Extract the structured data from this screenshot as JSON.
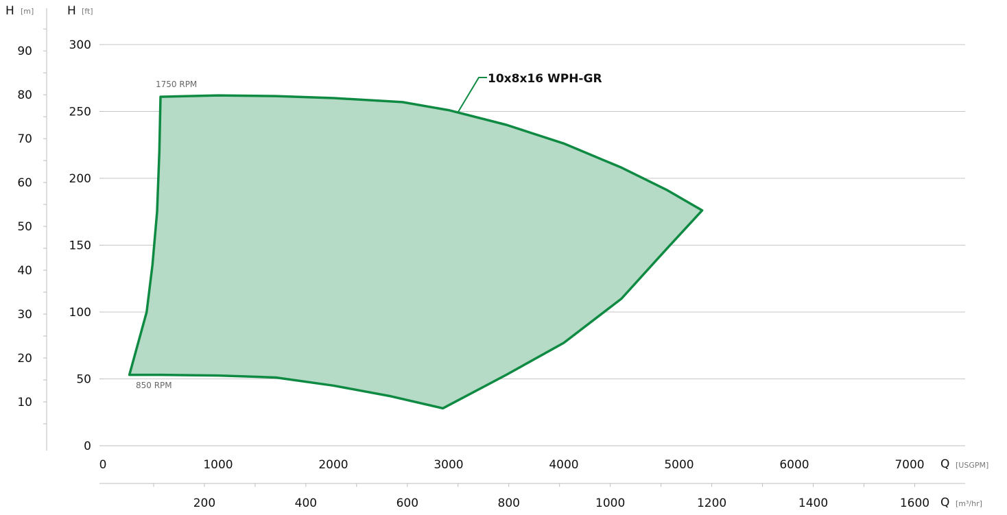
{
  "chart_data": {
    "type": "area",
    "title": "",
    "series": [
      {
        "name": "10x8x16 WPH-GR",
        "color": "#0f8a43",
        "fill": "#b5dbc6",
        "outline_usgpm_ft": [
          [
            500,
            261
          ],
          [
            1000,
            262
          ],
          [
            1500,
            261.5
          ],
          [
            2000,
            260
          ],
          [
            2600,
            257
          ],
          [
            3000,
            251
          ],
          [
            3500,
            240
          ],
          [
            4000,
            226
          ],
          [
            4500,
            208
          ],
          [
            4900,
            191
          ],
          [
            5200,
            176
          ],
          [
            4900,
            148
          ],
          [
            4500,
            110
          ],
          [
            4000,
            77
          ],
          [
            3500,
            53
          ],
          [
            2950,
            28
          ],
          [
            2500,
            37
          ],
          [
            2000,
            45
          ],
          [
            1500,
            51
          ],
          [
            1000,
            52.5
          ],
          [
            500,
            53
          ],
          [
            230,
            53
          ],
          [
            380,
            100
          ],
          [
            430,
            135
          ],
          [
            470,
            175
          ],
          [
            490,
            220
          ],
          [
            500,
            261
          ]
        ]
      }
    ],
    "annotations": {
      "model_label": "10x8x16 WPH-GR",
      "rpm_high": "1750 RPM",
      "rpm_low": "850 RPM"
    },
    "axes": {
      "left_m": {
        "letter": "H",
        "unit": "[m]",
        "ticks": [
          "10",
          "20",
          "30",
          "40",
          "50",
          "60",
          "70",
          "80",
          "90"
        ],
        "range": [
          0,
          91.44
        ]
      },
      "left_ft": {
        "letter": "H",
        "unit": "[ft]",
        "ticks": [
          "0",
          "50",
          "100",
          "150",
          "200",
          "250",
          "300"
        ],
        "range": [
          0,
          300
        ]
      },
      "bottom_usgpm": {
        "letter": "Q",
        "unit": "[USGPM]",
        "ticks": [
          "0",
          "1000",
          "2000",
          "3000",
          "4000",
          "5000",
          "6000",
          "7000"
        ],
        "range": [
          0,
          7500
        ]
      },
      "bottom_m3hr": {
        "letter": "Q",
        "unit": "[m³/hr]",
        "ticks": [
          "200",
          "400",
          "600",
          "800",
          "1000",
          "1200",
          "1400",
          "1600"
        ]
      }
    },
    "grid": true
  }
}
